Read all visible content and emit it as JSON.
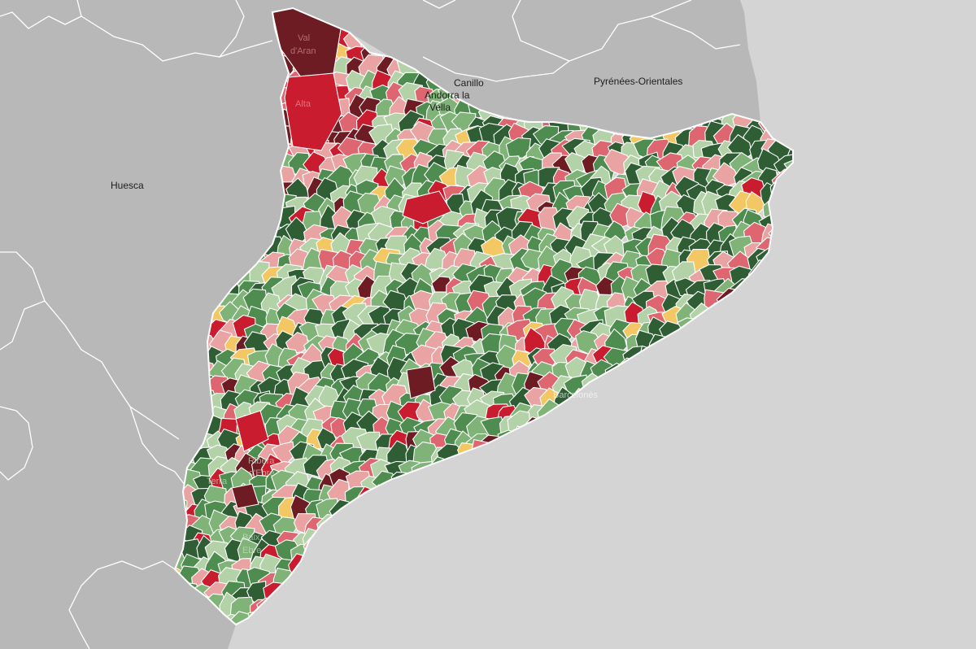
{
  "map": {
    "palette": {
      "sea": "#d4d4d4",
      "land_outside": "#b8b8b8",
      "border": "#ffffff",
      "choropleth": [
        "#2f5e35",
        "#4f8c4f",
        "#7fb377",
        "#b4d2a8",
        "#e9a3a3",
        "#de6670",
        "#c91c2f",
        "#6e1c24",
        "#f4c765"
      ]
    },
    "neighbour_labels": {
      "huesca": "Huesca",
      "pyrenees_orientales": "Pyrénées-Orientales",
      "canillo": "Canillo",
      "andorra_la": "Andorra la",
      "vella": "Vella"
    },
    "municipality_labels": {
      "val": "Val",
      "daran": "d'Aran",
      "alta": "Alta",
      "barcelones": "Barcelonès",
      "baix": "Baix",
      "ebre": "Ebre",
      "terra": "Terra",
      "ribera": "Ribera",
      "ebre2": "d'Ebre"
    }
  }
}
